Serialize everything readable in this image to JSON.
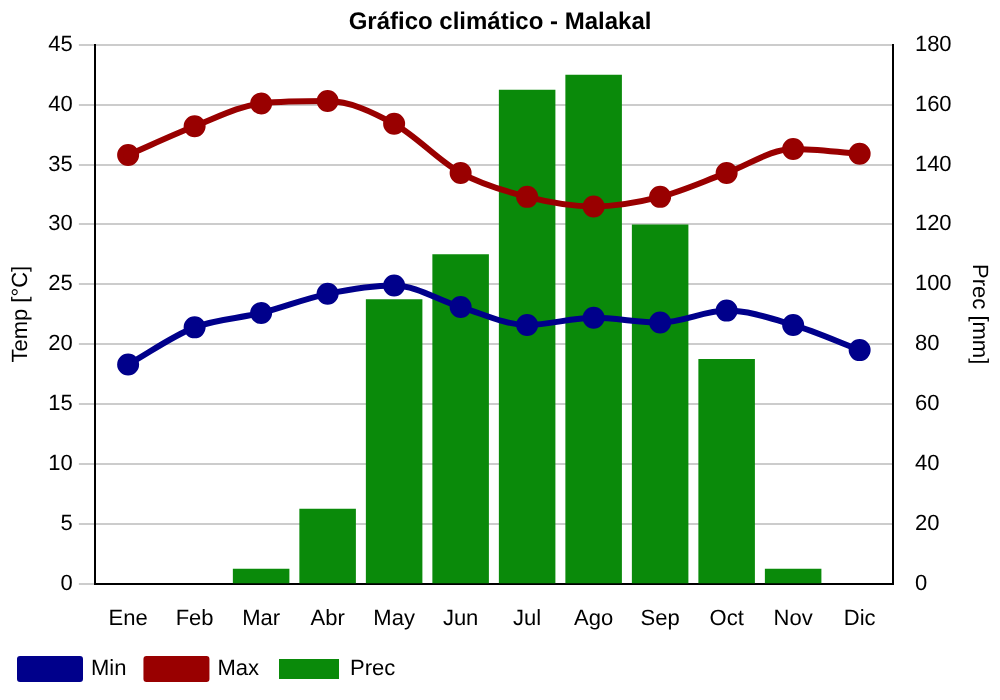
{
  "chart_data": {
    "type": "bar",
    "title": "Gráfico climático - Malakal",
    "ylabel": "Temp [°C]",
    "y2label": "Prec [mm]",
    "categories": [
      "Ene",
      "Feb",
      "Mar",
      "Abr",
      "May",
      "Jun",
      "Jul",
      "Ago",
      "Sep",
      "Oct",
      "Nov",
      "Dic"
    ],
    "series": [
      {
        "name": "Prec",
        "axis": "y2",
        "color": "#0a8a0a",
        "values": [
          0,
          0,
          5,
          25,
          95,
          110,
          165,
          170,
          120,
          75,
          5,
          0
        ]
      },
      {
        "name": "Min",
        "type": "line",
        "color": "#00008b",
        "values": [
          18.3,
          21.4,
          22.6,
          24.2,
          24.9,
          23.1,
          21.6,
          22.2,
          21.8,
          22.8,
          21.6,
          19.5
        ]
      },
      {
        "name": "Max",
        "type": "line",
        "color": "#990000",
        "values": [
          35.8,
          38.2,
          40.1,
          40.3,
          38.4,
          34.3,
          32.3,
          31.5,
          32.3,
          34.3,
          36.3,
          35.9
        ]
      }
    ],
    "ylim": [
      0,
      45
    ],
    "yticks": [
      0,
      5,
      10,
      15,
      20,
      25,
      30,
      35,
      40,
      45
    ],
    "y2lim": [
      0,
      180
    ],
    "y2ticks": [
      0,
      20,
      40,
      60,
      80,
      100,
      120,
      140,
      160,
      180
    ],
    "grid": "y",
    "legend": "bottom",
    "marker": "circle"
  }
}
